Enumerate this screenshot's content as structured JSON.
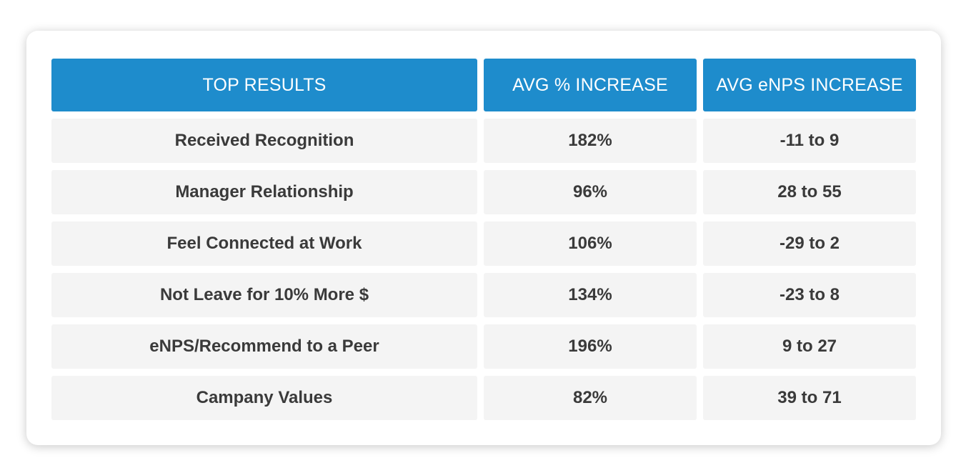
{
  "table": {
    "headers": [
      "TOP RESULTS",
      "AVG % INCREASE",
      "AVG eNPS INCREASE"
    ],
    "rows": [
      [
        "Received Recognition",
        "182%",
        "-11 to 9"
      ],
      [
        "Manager Relationship",
        "96%",
        "28 to 55"
      ],
      [
        "Feel Connected at Work",
        "106%",
        "-29 to 2"
      ],
      [
        "Not Leave for 10% More $",
        "134%",
        "-23 to 8"
      ],
      [
        "eNPS/Recommend to a Peer",
        "196%",
        "9 to 27"
      ],
      [
        "Campany Values",
        "82%",
        "39 to 71"
      ]
    ]
  },
  "colors": {
    "header_bg": "#1e8ccc",
    "header_text": "#ffffff",
    "row_bg": "#f4f4f4",
    "row_text": "#3a3a3a"
  }
}
